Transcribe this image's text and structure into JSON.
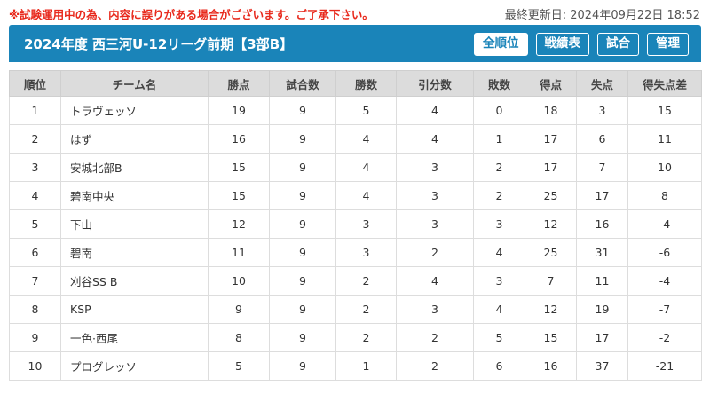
{
  "notice": "※試験運用中の為、内容に誤りがある場合がございます。ご了承下さい。",
  "last_updated": "最終更新日: 2024年09月22日 18:52",
  "league_title": "2024年度 西三河U-12リーグ前期【3部B】",
  "tabs": [
    {
      "label": "全順位",
      "active": true
    },
    {
      "label": "戦績表",
      "active": false
    },
    {
      "label": "試合",
      "active": false
    },
    {
      "label": "管理",
      "active": false
    }
  ],
  "table": {
    "headers": [
      "順位",
      "チーム名",
      "勝点",
      "試合数",
      "勝数",
      "引分数",
      "敗数",
      "得点",
      "失点",
      "得失点差"
    ],
    "rows": [
      [
        "1",
        "トラヴェッソ",
        "19",
        "9",
        "5",
        "4",
        "0",
        "18",
        "3",
        "15"
      ],
      [
        "2",
        "はず",
        "16",
        "9",
        "4",
        "4",
        "1",
        "17",
        "6",
        "11"
      ],
      [
        "3",
        "安城北部B",
        "15",
        "9",
        "4",
        "3",
        "2",
        "17",
        "7",
        "10"
      ],
      [
        "4",
        "碧南中央",
        "15",
        "9",
        "4",
        "3",
        "2",
        "25",
        "17",
        "8"
      ],
      [
        "5",
        "下山",
        "12",
        "9",
        "3",
        "3",
        "3",
        "12",
        "16",
        "-4"
      ],
      [
        "6",
        "碧南",
        "11",
        "9",
        "3",
        "2",
        "4",
        "25",
        "31",
        "-6"
      ],
      [
        "7",
        "刈谷SS B",
        "10",
        "9",
        "2",
        "4",
        "3",
        "7",
        "11",
        "-4"
      ],
      [
        "8",
        "KSP",
        "9",
        "9",
        "2",
        "3",
        "4",
        "12",
        "19",
        "-7"
      ],
      [
        "9",
        "一色·西尾",
        "8",
        "9",
        "2",
        "2",
        "5",
        "15",
        "17",
        "-2"
      ],
      [
        "10",
        "プログレッソ",
        "5",
        "9",
        "1",
        "2",
        "6",
        "16",
        "37",
        "-21"
      ]
    ]
  }
}
